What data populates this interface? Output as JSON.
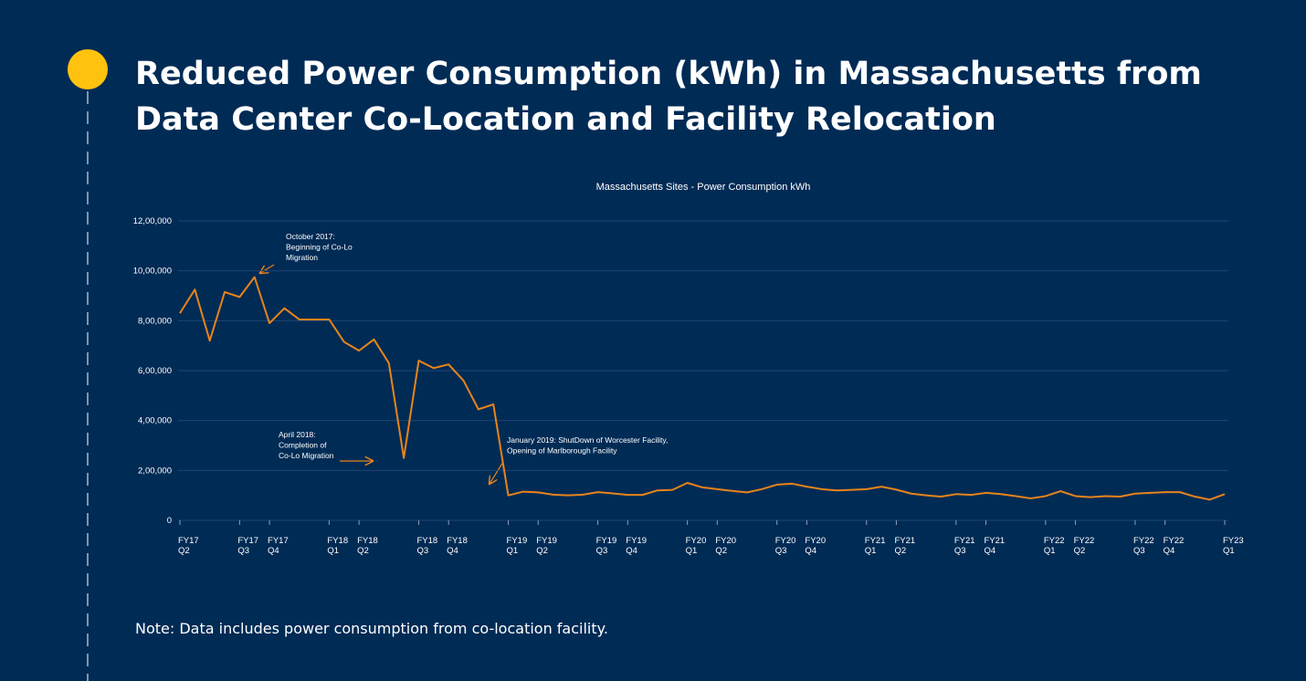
{
  "header": {
    "title": "Reduced Power Consumption (kWh) in Massachusetts from Data Center Co-Location and Facility Relocation"
  },
  "note": "Note: Data includes power consumption from co-location facility.",
  "chart_data": {
    "type": "line",
    "title": "Massachusetts Sites - Power Consumption kWh",
    "color": "#e8841a",
    "grid": true,
    "categories": [
      "FY17 Q2",
      null,
      null,
      null,
      "FY17 Q3",
      null,
      "FY17 Q4",
      null,
      null,
      null,
      "FY18 Q1",
      null,
      "FY18 Q2",
      null,
      null,
      null,
      "FY18 Q3",
      null,
      "FY18 Q4",
      null,
      null,
      null,
      "FY19 Q1",
      null,
      "FY19 Q2",
      null,
      null,
      null,
      "FY19 Q3",
      null,
      "FY19 Q4",
      null,
      null,
      null,
      "FY20 Q1",
      null,
      "FY20 Q2",
      null,
      null,
      null,
      "FY20 Q3",
      null,
      "FY20 Q4",
      null,
      null,
      null,
      "FY21 Q1",
      null,
      "FY21 Q2",
      null,
      null,
      null,
      "FY21 Q3",
      null,
      "FY21 Q4",
      null,
      null,
      null,
      "FY22 Q1",
      null,
      "FY22 Q2",
      null,
      null,
      null,
      "FY22 Q3",
      null,
      "FY22 Q4",
      null,
      null,
      null,
      "FY23 Q1"
    ],
    "values": [
      830000,
      925000,
      720000,
      915000,
      895000,
      975000,
      790000,
      850000,
      805000,
      805000,
      805000,
      715000,
      680000,
      725000,
      630000,
      250000,
      640000,
      610000,
      625000,
      560000,
      445000,
      465000,
      100000,
      115000,
      112000,
      103000,
      100000,
      103000,
      113000,
      108000,
      102000,
      102000,
      120000,
      122000,
      150000,
      132000,
      125000,
      118000,
      112000,
      125000,
      143000,
      147000,
      135000,
      125000,
      120000,
      122000,
      125000,
      135000,
      123000,
      107000,
      100000,
      95000,
      105000,
      102000,
      110000,
      105000,
      97000,
      88000,
      97000,
      117000,
      97000,
      93000,
      97000,
      95000,
      107000,
      110000,
      113000,
      113000,
      95000,
      83000,
      105000
    ],
    "ylim": [
      0,
      1200000
    ],
    "yticks": [
      0,
      {
        "value": 200000,
        "label": "2,00,000"
      },
      {
        "value": 400000,
        "label": "4,00,000"
      },
      {
        "value": 600000,
        "label": "6,00,000"
      },
      {
        "value": 800000,
        "label": "8,00,000"
      },
      {
        "value": 1000000,
        "label": "10,00,000"
      },
      {
        "value": 1200000,
        "label": "12,00,000"
      }
    ],
    "annotations": [
      {
        "lines": [
          "October 2017:",
          "Beginning of Co-Lo",
          "Migration"
        ]
      },
      {
        "lines": [
          "April 2018:",
          "Completion of",
          "Co-Lo Migration"
        ]
      },
      {
        "lines": [
          "January 2019: ShutDown of Worcester Facility,",
          "Opening of Marlborough Facility"
        ]
      }
    ]
  }
}
